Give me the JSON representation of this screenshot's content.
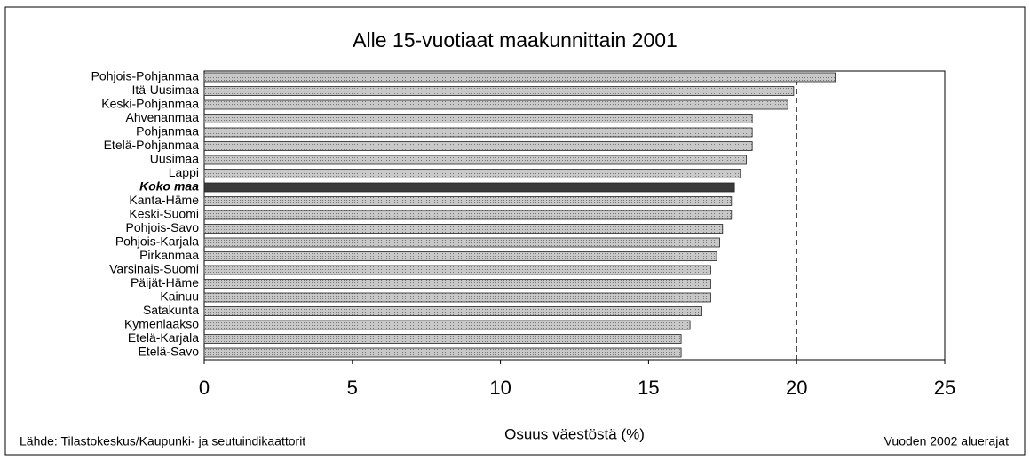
{
  "chart_data": {
    "type": "barh",
    "title": "Alle 15-vuotiaat maakunnittain 2001",
    "x_label": "Osuus väestöstä (%)",
    "source": "Lähde: Tilastokeskus/Kaupunki- ja seutuindikaattorit",
    "note": "Vuoden 2002 aluerajat",
    "categories": [
      "Pohjois-Pohjanmaa",
      "Itä-Uusimaa",
      "Keski-Pohjanmaa",
      "Ahvenanmaa",
      "Pohjanmaa",
      "Etelä-Pohjanmaa",
      "Uusimaa",
      "Lappi",
      "Koko maa",
      "Kanta-Häme",
      "Keski-Suomi",
      "Pohjois-Savo",
      "Pohjois-Karjala",
      "Pirkanmaa",
      "Varsinais-Suomi",
      "Päijät-Häme",
      "Kainuu",
      "Satakunta",
      "Kymenlaakso",
      "Etelä-Karjala",
      "Etelä-Savo"
    ],
    "values": [
      21.3,
      19.9,
      19.7,
      18.5,
      18.5,
      18.5,
      18.3,
      18.1,
      17.9,
      17.8,
      17.8,
      17.5,
      17.4,
      17.3,
      17.1,
      17.1,
      17.1,
      16.8,
      16.4,
      16.1,
      16.1
    ],
    "color": "#b8b8b8",
    "highlight_index": 8,
    "highlight_color": "#3a3a3a",
    "reference_line": 20,
    "xlim": [
      0,
      25
    ],
    "xticks": [
      0,
      5,
      10,
      15,
      20,
      25
    ]
  }
}
